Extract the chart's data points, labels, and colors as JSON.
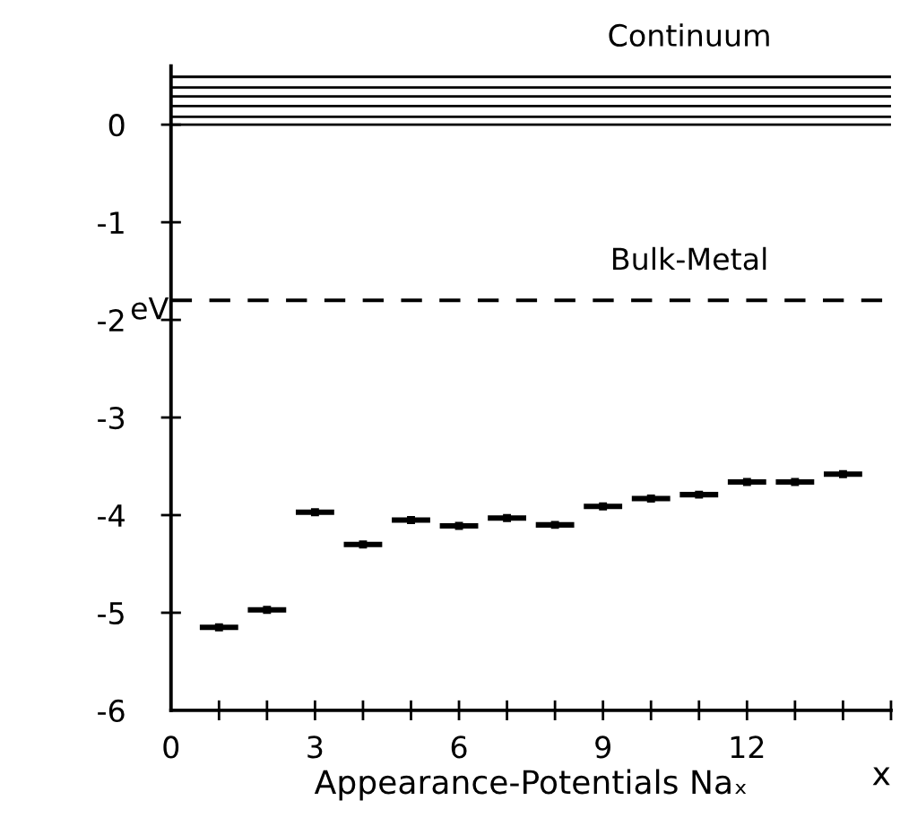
{
  "chart_data": {
    "type": "scatter",
    "xlabel": "Appearance-Potentials Naₓ",
    "ylabel": "eV",
    "x": [
      1,
      2,
      3,
      4,
      5,
      6,
      7,
      8,
      9,
      10,
      11,
      12,
      13,
      14
    ],
    "series": [
      {
        "color": "#000000",
        "values": [
          -5.15,
          -4.97,
          -3.97,
          -4.3,
          -4.05,
          -4.11,
          -4.03,
          -4.1,
          -3.91,
          -3.83,
          -3.79,
          -3.66,
          -3.66,
          -3.58
        ],
        "xerrors": [
          0.4,
          0.4,
          0.4,
          0.4,
          0.4,
          0.4,
          0.4,
          0.4,
          0.4,
          0.4,
          0.4,
          0.4,
          0.4,
          0.4
        ]
      }
    ],
    "marker": "square",
    "xlim": [
      0,
      15
    ],
    "ylim": [
      -6,
      0.6
    ],
    "xticks": [
      0,
      {
        "value": 1,
        "label": null
      },
      {
        "value": 2,
        "label": null
      },
      3,
      {
        "value": 4,
        "label": null
      },
      {
        "value": 5,
        "label": null
      },
      6,
      {
        "value": 7,
        "label": null
      },
      {
        "value": 8,
        "label": null
      },
      9,
      {
        "value": 10,
        "label": null
      },
      {
        "value": 11,
        "label": null
      },
      12,
      {
        "value": 13,
        "label": null
      },
      {
        "value": 14,
        "label": null
      },
      {
        "value": 15,
        "label": null
      }
    ],
    "yticks": [
      -6,
      -5,
      -4,
      -3,
      -2,
      -1,
      0
    ],
    "ref_lines": [
      {
        "axis": "y",
        "value": 0,
        "color": "#000000",
        "line_style": "solid"
      },
      {
        "axis": "y",
        "value": 0.08,
        "color": "#000000",
        "line_style": "solid"
      },
      {
        "axis": "y",
        "value": 0.19,
        "color": "#000000",
        "line_style": "solid"
      },
      {
        "axis": "y",
        "value": 0.29,
        "color": "#000000",
        "line_style": "solid"
      },
      {
        "axis": "y",
        "value": 0.38,
        "color": "#000000",
        "line_style": "solid"
      },
      {
        "axis": "y",
        "value": 0.49,
        "label": "Continuum",
        "color": "#000000",
        "line_style": "solid"
      },
      {
        "axis": "y",
        "value": -1.8,
        "label": "Bulk-Metal",
        "color": "#000000",
        "line_style": "dashed"
      }
    ],
    "annotations": [
      "x"
    ],
    "grid": false,
    "legend": false
  }
}
